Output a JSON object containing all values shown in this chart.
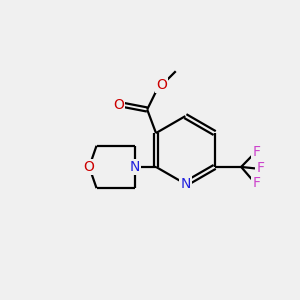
{
  "background_color": "#f0f0f0",
  "bond_color": "#000000",
  "atom_colors": {
    "N": "#2222dd",
    "O": "#cc0000",
    "F": "#cc44cc",
    "C": "#000000"
  },
  "figsize": [
    3.0,
    3.0
  ],
  "dpi": 100
}
